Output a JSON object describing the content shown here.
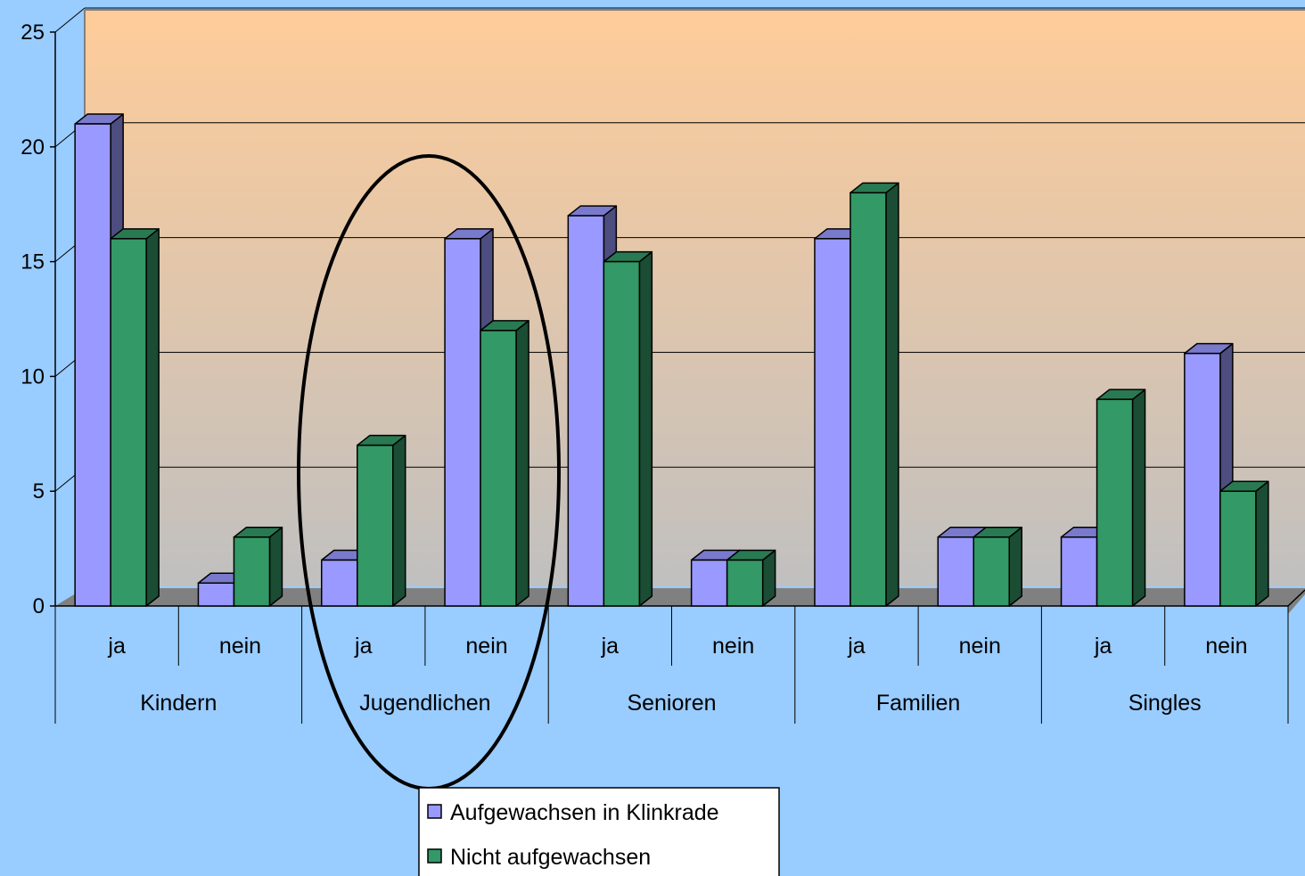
{
  "chart_data": {
    "type": "bar",
    "categories": [
      "ja",
      "nein",
      "ja",
      "nein",
      "ja",
      "nein",
      "ja",
      "nein",
      "ja",
      "nein"
    ],
    "groups": [
      "Kindern",
      "Jugendlichen",
      "Senioren",
      "Familien",
      "Singles"
    ],
    "series": [
      {
        "name": "Aufgewachsen in Klinkrade",
        "values": [
          21,
          1,
          2,
          16,
          17,
          2,
          16,
          3,
          3,
          11
        ]
      },
      {
        "name": "Nicht aufgewachsen",
        "values": [
          16,
          3,
          7,
          12,
          15,
          2,
          18,
          3,
          9,
          5
        ]
      }
    ],
    "yticks": [
      "0",
      "5",
      "10",
      "15",
      "20",
      "25"
    ],
    "ylim": [
      0,
      25
    ],
    "grid": true,
    "legend": "bottom-center",
    "annotation": "ellipse around Jugendlichen",
    "colors": {
      "series1_front": "#9999ff",
      "series1_side": "#4d4d80",
      "series1_top": "#7a7acc",
      "series2_front": "#339966",
      "series2_side": "#1a4d33",
      "series2_top": "#297a52",
      "background": "#99ccff",
      "floor": "#808080",
      "wall_top": "#ffcc99",
      "wall_bottom": "#c0c0c0"
    }
  }
}
